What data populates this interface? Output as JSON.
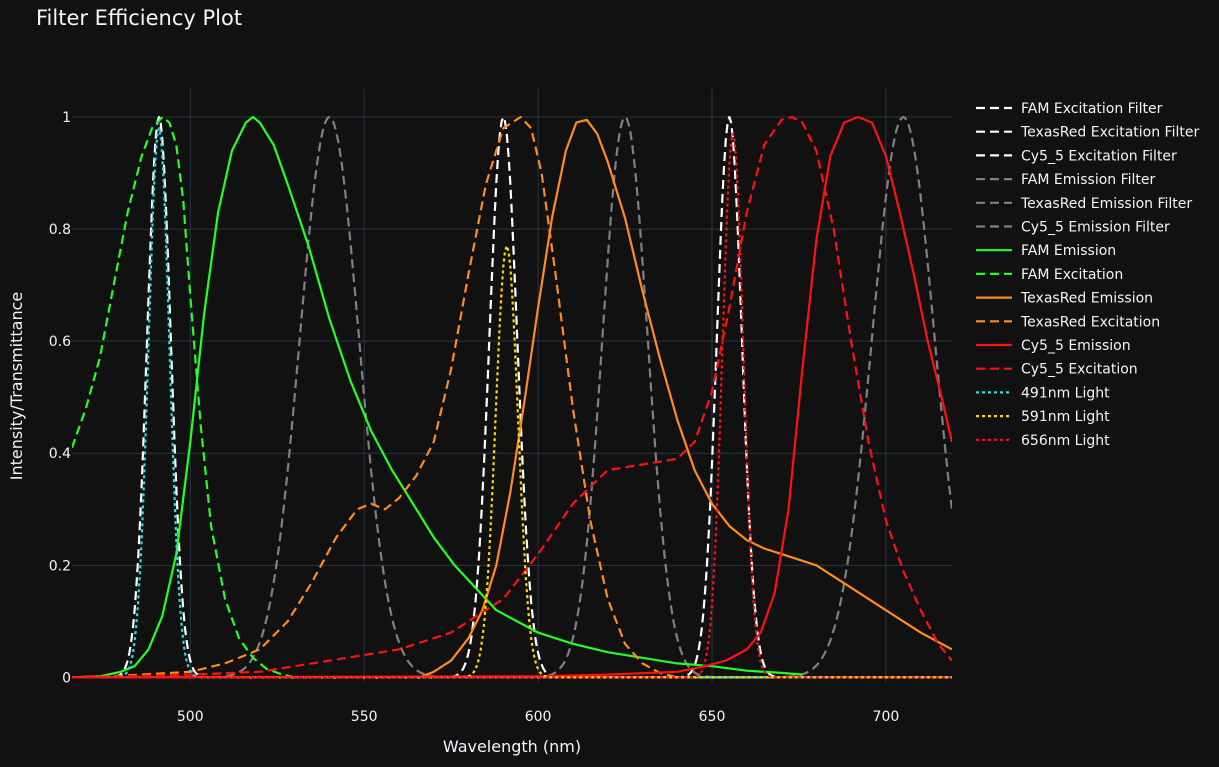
{
  "chart_data": {
    "type": "line",
    "title": "Filter Efficiency Plot",
    "xlabel": "Wavelength (nm)",
    "ylabel": "Intensity/Transmittance",
    "xlim": [
      466,
      719
    ],
    "ylim": [
      -0.01,
      1.05
    ],
    "x_ticks": [
      500,
      550,
      600,
      650,
      700
    ],
    "y_ticks": [
      0,
      0.2,
      0.4,
      0.6,
      0.8,
      1
    ],
    "y_tick_labels": [
      "0",
      "0.2",
      "0.4",
      "0.6",
      "0.8",
      "1"
    ],
    "grid": true,
    "legend_position": "right",
    "series": [
      {
        "name": "FAM Excitation Filter",
        "color": "#ffffff",
        "dash": "dash",
        "shape": "gauss",
        "center": 491,
        "sigma": 3.4,
        "amp": 1.0
      },
      {
        "name": "TexasRed Excitation Filter",
        "color": "#ffffff",
        "dash": "dash",
        "shape": "gauss",
        "center": 590,
        "sigma": 4.0,
        "amp": 1.0
      },
      {
        "name": "Cy5_5 Excitation Filter",
        "color": "#ffffff",
        "dash": "dash",
        "shape": "gauss",
        "center": 655,
        "sigma": 3.6,
        "amp": 1.0
      },
      {
        "name": "FAM Emission Filter",
        "color": "#808080",
        "dash": "dash",
        "shape": "gauss",
        "center": 540,
        "sigma": 8.5,
        "amp": 1.0
      },
      {
        "name": "TexasRed Emission Filter",
        "color": "#808080",
        "dash": "dash",
        "shape": "gauss",
        "center": 625,
        "sigma": 6.5,
        "amp": 1.0
      },
      {
        "name": "Cy5_5 Emission Filter",
        "color": "#808080",
        "dash": "dash",
        "shape": "gauss",
        "center": 705,
        "sigma": 9.0,
        "amp": 1.0
      },
      {
        "name": "FAM Emission",
        "color": "#22ff22",
        "dash": "solid",
        "shape": "points",
        "x": [
          466,
          474,
          480,
          484,
          488,
          492,
          496,
          500,
          504,
          508,
          512,
          516,
          518,
          520,
          524,
          528,
          534,
          540,
          546,
          552,
          558,
          564,
          570,
          576,
          582,
          588,
          594,
          600,
          610,
          620,
          630,
          640,
          650,
          660,
          670,
          676
        ],
        "y": [
          0,
          0.002,
          0.01,
          0.02,
          0.05,
          0.11,
          0.22,
          0.42,
          0.65,
          0.83,
          0.94,
          0.99,
          1.0,
          0.99,
          0.95,
          0.88,
          0.77,
          0.64,
          0.53,
          0.44,
          0.37,
          0.31,
          0.25,
          0.2,
          0.16,
          0.12,
          0.1,
          0.08,
          0.06,
          0.045,
          0.035,
          0.025,
          0.02,
          0.012,
          0.008,
          0.005
        ]
      },
      {
        "name": "FAM Excitation",
        "color": "#22ff22",
        "dash": "dash",
        "shape": "points",
        "x": [
          466,
          470,
          474,
          478,
          482,
          486,
          489,
          492,
          494,
          496,
          498,
          500,
          503,
          506,
          510,
          514,
          518,
          522,
          526,
          530
        ],
        "y": [
          0.41,
          0.48,
          0.57,
          0.7,
          0.83,
          0.93,
          0.98,
          1.0,
          0.99,
          0.95,
          0.85,
          0.68,
          0.45,
          0.27,
          0.14,
          0.07,
          0.035,
          0.015,
          0.006,
          0
        ]
      },
      {
        "name": "TexasRed Emission",
        "color": "#ff8c1a",
        "dash": "solid",
        "shape": "points",
        "x": [
          566,
          570,
          575,
          580,
          584,
          588,
          592,
          596,
          600,
          604,
          608,
          611,
          614,
          617,
          620,
          625,
          630,
          635,
          640,
          645,
          650,
          655,
          660,
          665,
          670,
          675,
          680,
          690,
          700,
          710,
          719
        ],
        "y": [
          0,
          0.01,
          0.03,
          0.07,
          0.12,
          0.2,
          0.33,
          0.49,
          0.66,
          0.82,
          0.94,
          0.99,
          0.995,
          0.97,
          0.92,
          0.82,
          0.69,
          0.57,
          0.46,
          0.37,
          0.31,
          0.27,
          0.245,
          0.23,
          0.22,
          0.21,
          0.2,
          0.16,
          0.12,
          0.08,
          0.05
        ]
      },
      {
        "name": "TexasRed Excitation",
        "color": "#ff8c1a",
        "dash": "dash",
        "shape": "points",
        "x": [
          466,
          480,
          500,
          510,
          520,
          528,
          535,
          542,
          548,
          552,
          556,
          560,
          565,
          570,
          575,
          580,
          585,
          590,
          595,
          598,
          601,
          605,
          610,
          615,
          620,
          625,
          630,
          635,
          640
        ],
        "y": [
          0,
          0.003,
          0.01,
          0.025,
          0.05,
          0.1,
          0.17,
          0.25,
          0.3,
          0.31,
          0.3,
          0.32,
          0.36,
          0.42,
          0.55,
          0.72,
          0.88,
          0.98,
          1.0,
          0.98,
          0.9,
          0.72,
          0.48,
          0.28,
          0.14,
          0.06,
          0.025,
          0.008,
          0
        ]
      },
      {
        "name": "Cy5_5 Emission",
        "color": "#ff1111",
        "dash": "solid",
        "shape": "points",
        "x": [
          466,
          600,
          620,
          640,
          648,
          654,
          660,
          664,
          668,
          672,
          676,
          680,
          684,
          688,
          692,
          696,
          700,
          704,
          708,
          712,
          716,
          719
        ],
        "y": [
          0,
          0.002,
          0.005,
          0.01,
          0.02,
          0.03,
          0.05,
          0.08,
          0.15,
          0.3,
          0.55,
          0.78,
          0.93,
          0.99,
          1.0,
          0.99,
          0.93,
          0.83,
          0.72,
          0.6,
          0.5,
          0.42
        ]
      },
      {
        "name": "Cy5_5 Excitation",
        "color": "#ff1111",
        "dash": "dash",
        "shape": "points",
        "x": [
          466,
          500,
          520,
          540,
          560,
          575,
          590,
          600,
          610,
          620,
          630,
          640,
          645,
          650,
          655,
          660,
          665,
          670,
          673,
          676,
          680,
          685,
          690,
          695,
          700,
          705,
          710,
          715,
          719
        ],
        "y": [
          0,
          0.005,
          0.01,
          0.03,
          0.05,
          0.08,
          0.14,
          0.22,
          0.31,
          0.37,
          0.38,
          0.39,
          0.42,
          0.51,
          0.66,
          0.83,
          0.95,
          0.995,
          1.0,
          0.99,
          0.94,
          0.8,
          0.6,
          0.42,
          0.28,
          0.19,
          0.12,
          0.06,
          0.03
        ]
      },
      {
        "name": "491nm Light",
        "color": "#22e0e0",
        "dash": "dot",
        "shape": "gauss",
        "center": 491,
        "sigma": 3.0,
        "amp": 0.98
      },
      {
        "name": "591nm Light",
        "color": "#ffd700",
        "dash": "dot",
        "shape": "gauss",
        "center": 591,
        "sigma": 3.2,
        "amp": 0.77
      },
      {
        "name": "656nm Light",
        "color": "#ff1111",
        "dash": "dot",
        "shape": "gauss",
        "center": 656,
        "sigma": 3.0,
        "amp": 0.97
      }
    ]
  }
}
